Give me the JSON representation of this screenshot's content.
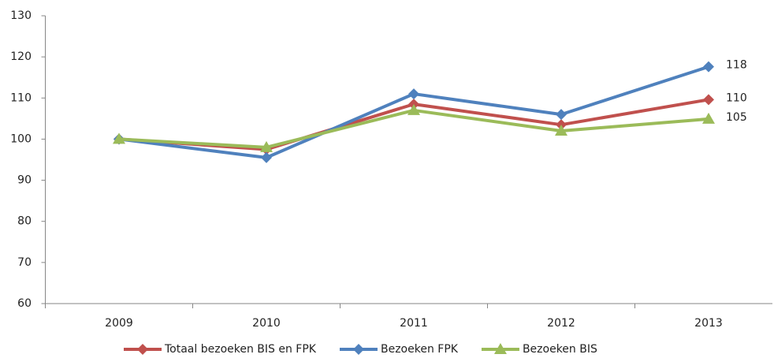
{
  "chart_data": {
    "type": "line",
    "categories": [
      "2009",
      "2010",
      "2011",
      "2012",
      "2013"
    ],
    "series": [
      {
        "name": "Totaal bezoeken BIS en FPK",
        "color": "#c0504d",
        "marker": "diamond",
        "values": [
          100,
          97.5,
          108.5,
          103.5,
          109.6
        ],
        "value_labels": [
          null,
          null,
          null,
          null,
          "110"
        ]
      },
      {
        "name": "Bezoeken FPK",
        "color": "#4f81bd",
        "marker": "diamond",
        "values": [
          100,
          95.5,
          111,
          106,
          117.6
        ],
        "value_labels": [
          null,
          null,
          null,
          null,
          "118"
        ]
      },
      {
        "name": "Bezoeken BIS",
        "color": "#9bbb59",
        "marker": "triangle",
        "values": [
          100,
          98,
          107,
          102,
          104.9
        ],
        "value_labels": [
          null,
          null,
          null,
          null,
          "105"
        ]
      }
    ],
    "ylim": [
      60,
      130
    ],
    "yticks": [
      60,
      70,
      80,
      90,
      100,
      110,
      120,
      130
    ],
    "grid": false,
    "legend": "bottom"
  }
}
